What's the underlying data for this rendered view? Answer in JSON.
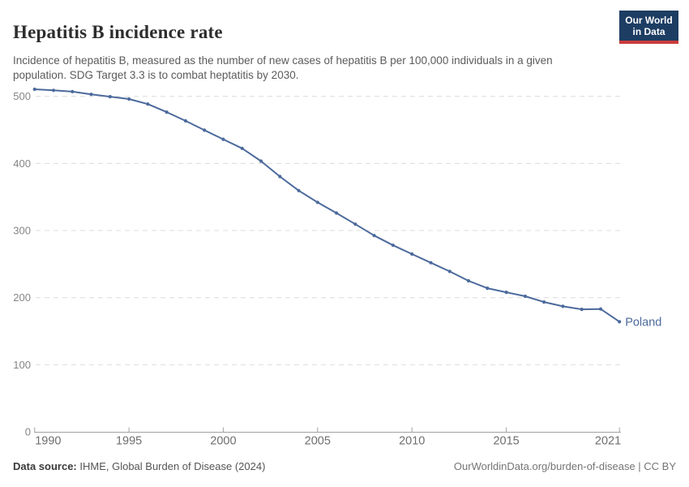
{
  "header": {
    "title": "Hepatitis B incidence rate",
    "subtitle": "Incidence of hepatitis B, measured as the number of new cases of hepatitis B per 100,000 individuals in a given population. SDG Target 3.3 is to combat heptatitis by 2030."
  },
  "logo": {
    "line1": "Our World",
    "line2": "in Data",
    "background": "#1d3d63",
    "bar_color": "#c93c3c"
  },
  "chart_data": {
    "type": "line",
    "title": "Hepatitis B incidence rate",
    "xlabel": "",
    "ylabel": "New cases of hepatitis B per 100,000 individuals",
    "xlim": [
      1990,
      2021
    ],
    "ylim": [
      0,
      520
    ],
    "grid": "horizontal-dashed",
    "legend_position": "end-of-line-label",
    "xticks": [
      1990,
      1995,
      2000,
      2005,
      2010,
      2015,
      2021
    ],
    "yticks": [
      0,
      100,
      200,
      300,
      400,
      500
    ],
    "series": [
      {
        "name": "Poland",
        "color": "#4C6A9C",
        "x": [
          1990,
          1991,
          1992,
          1993,
          1994,
          1995,
          1996,
          1997,
          1998,
          1999,
          2000,
          2001,
          2002,
          2003,
          2004,
          2005,
          2006,
          2007,
          2008,
          2009,
          2010,
          2011,
          2012,
          2013,
          2014,
          2015,
          2016,
          2017,
          2018,
          2019,
          2020,
          2021
        ],
        "values": [
          510.5,
          509,
          507,
          503,
          499.5,
          496,
          488.5,
          476.5,
          463.5,
          449.5,
          436,
          422.5,
          403.5,
          380.5,
          359.5,
          342,
          326,
          309.5,
          292.5,
          278,
          265,
          252,
          239,
          225,
          214,
          208,
          202,
          193.5,
          187,
          182.5,
          183,
          164
        ]
      }
    ],
    "axis_colors": {
      "tick_label": "#6e6e6e",
      "y_label": "#858585",
      "axis_line": "#a1a1a1",
      "gridline": "#dcdcdc"
    }
  },
  "footer": {
    "source_label": "Data source:",
    "source_text": " IHME, Global Burden of Disease (2024)",
    "credit": "OurWorldinData.org/burden-of-disease | CC BY"
  }
}
